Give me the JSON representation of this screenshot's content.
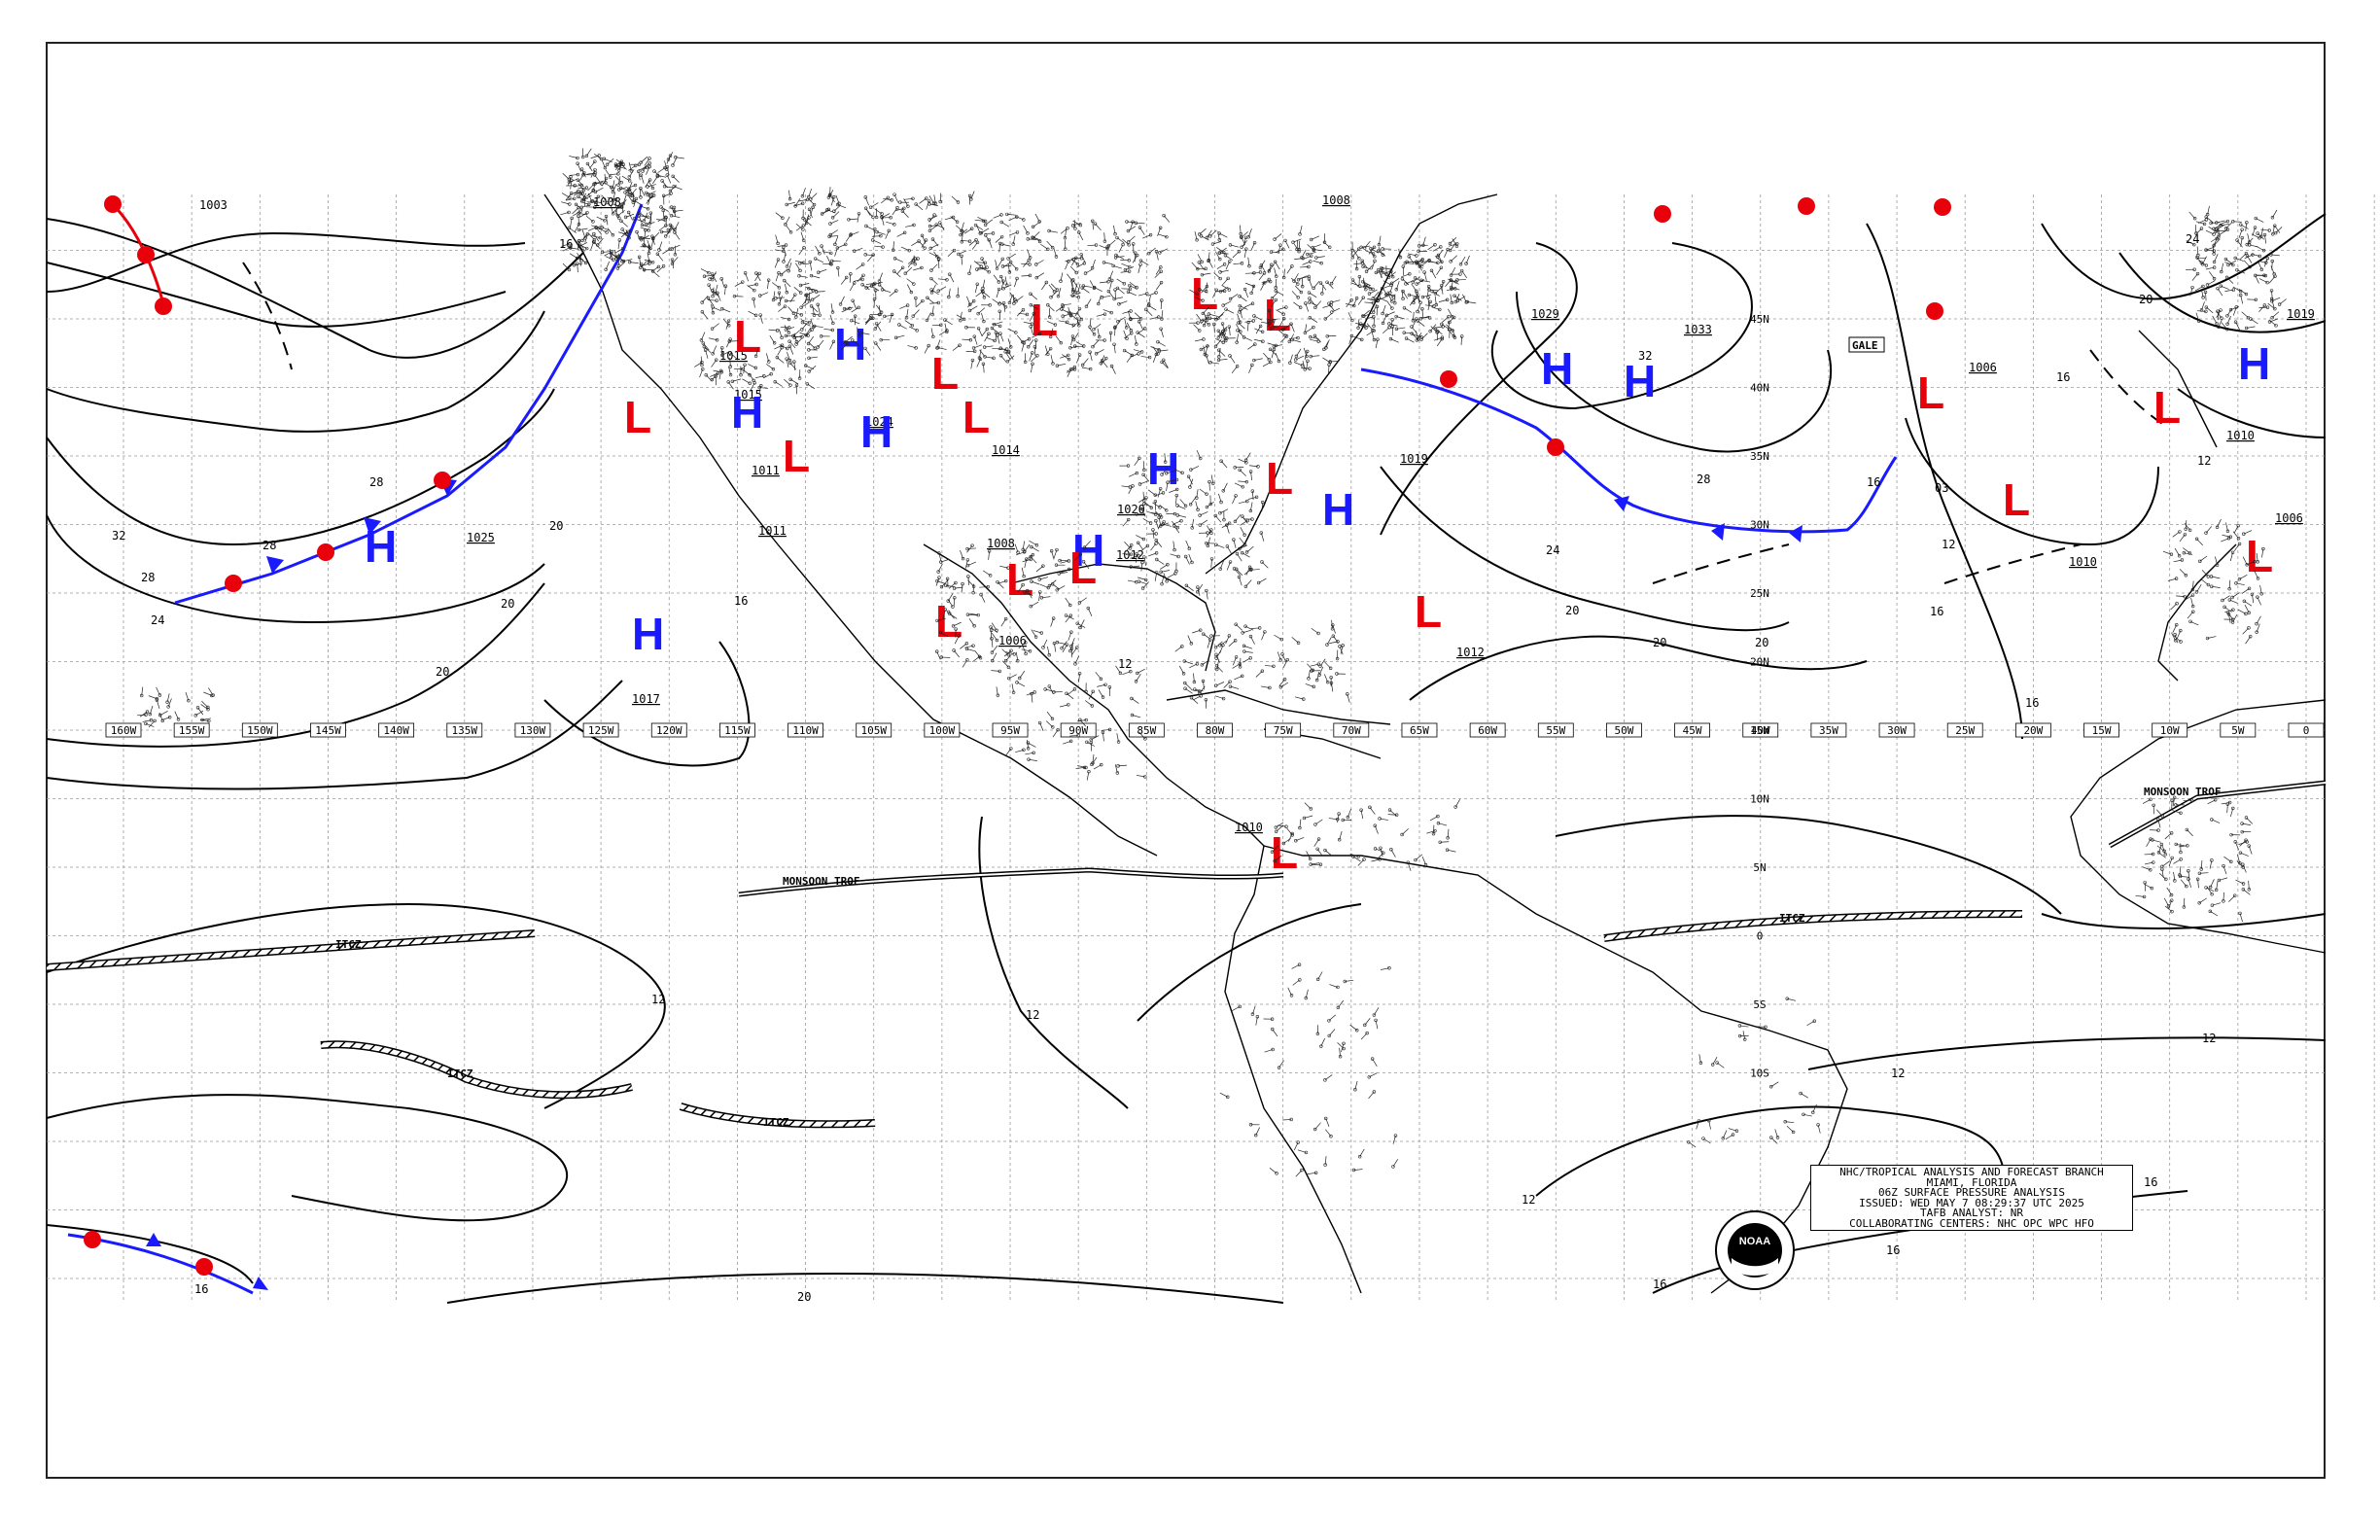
{
  "info": {
    "line1": "NHC/TROPICAL ANALYSIS AND FORECAST BRANCH",
    "line2": "MIAMI, FLORIDA",
    "line3": "06Z SURFACE PRESSURE ANALYSIS",
    "line4": "ISSUED: WED MAY 7 08:29:37 UTC 2025",
    "line5": "TAFB ANALYST: NR",
    "line6": "COLLABORATING CENTERS: NHC OPC WPC HFO"
  },
  "logo_text": "NOAA",
  "colors": {
    "high": "#1a1aff",
    "low": "#e8000b",
    "warm": "#e8000b",
    "cold": "#1a1aff",
    "lines": "#000000"
  },
  "longitudes": [
    "160W",
    "155W",
    "150W",
    "145W",
    "140W",
    "135W",
    "130W",
    "125W",
    "120W",
    "115W",
    "110W",
    "105W",
    "100W",
    "95W",
    "90W",
    "85W",
    "80W",
    "75W",
    "70W",
    "65W",
    "60W",
    "55W",
    "50W",
    "45W",
    "40W",
    "35W",
    "30W",
    "25W",
    "20W",
    "15W",
    "10W",
    "5W",
    "0"
  ],
  "latitudes_west": [
    "45N",
    "40N",
    "35N",
    "30N",
    "25N",
    "20N",
    "15N",
    "10N",
    "5N",
    "0",
    "5S",
    "10S"
  ],
  "features": [
    {
      "type": "H",
      "pressure": ""
    },
    {
      "type": "H",
      "pressure": "1025"
    },
    {
      "type": "H",
      "pressure": "1017"
    },
    {
      "type": "H",
      "pressure": "1015"
    },
    {
      "type": "H",
      "pressure": "1021"
    },
    {
      "type": "H",
      "pressure": "1024"
    },
    {
      "type": "H",
      "pressure": "1019"
    },
    {
      "type": "H",
      "pressure": "1029"
    },
    {
      "type": "H",
      "pressure": "1033"
    },
    {
      "type": "H",
      "pressure": "1019"
    },
    {
      "type": "H",
      "pressure": "1020"
    },
    {
      "type": "L",
      "pressure": "1003"
    },
    {
      "type": "L",
      "pressure": "1010"
    },
    {
      "type": "L",
      "pressure": "1011"
    },
    {
      "type": "L",
      "pressure": "1008"
    },
    {
      "type": "L",
      "pressure": "1006"
    },
    {
      "type": "L",
      "pressure": "1012"
    },
    {
      "type": "L",
      "pressure": "1010"
    },
    {
      "type": "L",
      "pressure": "1006"
    },
    {
      "type": "L",
      "pressure": "1014"
    }
  ],
  "labels": {
    "monsoon_e": "MONSOON TROF",
    "monsoon_w": "MONSOON TROF",
    "itcz1": "ITCZ",
    "itcz2": "ITCZ",
    "itcz3": "ITCZ",
    "itcz4": "ITCZ",
    "gale": "GALE"
  }
}
